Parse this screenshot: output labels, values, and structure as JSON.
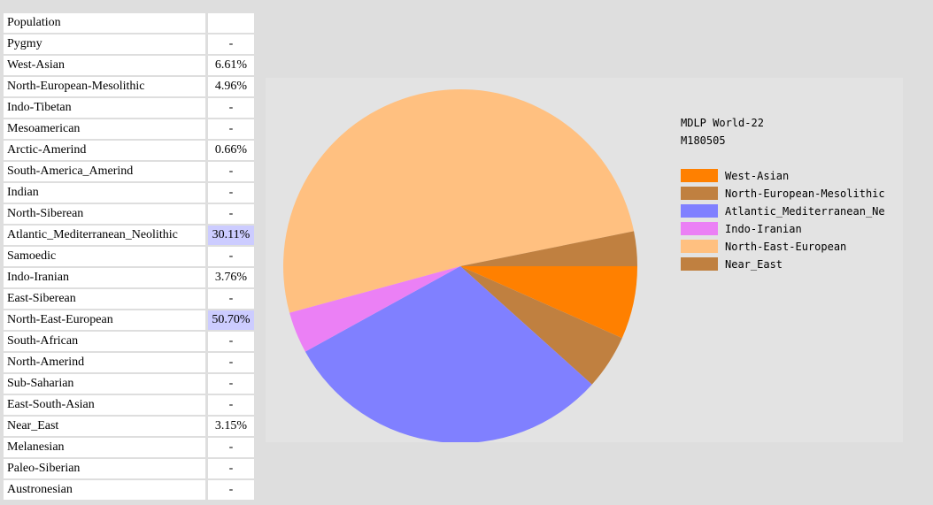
{
  "table": {
    "header": "Population",
    "rows": [
      {
        "name": "Pygmy",
        "value": "-",
        "highlight": false
      },
      {
        "name": "West-Asian",
        "value": "6.61%",
        "highlight": false
      },
      {
        "name": "North-European-Mesolithic",
        "value": "4.96%",
        "highlight": false
      },
      {
        "name": "Indo-Tibetan",
        "value": "-",
        "highlight": false
      },
      {
        "name": "Mesoamerican",
        "value": "-",
        "highlight": false
      },
      {
        "name": "Arctic-Amerind",
        "value": "0.66%",
        "highlight": false
      },
      {
        "name": "South-America_Amerind",
        "value": "-",
        "highlight": false
      },
      {
        "name": "Indian",
        "value": "-",
        "highlight": false
      },
      {
        "name": "North-Siberean",
        "value": "-",
        "highlight": false
      },
      {
        "name": "Atlantic_Mediterranean_Neolithic",
        "value": "30.11%",
        "highlight": true
      },
      {
        "name": "Samoedic",
        "value": "-",
        "highlight": false
      },
      {
        "name": "Indo-Iranian",
        "value": "3.76%",
        "highlight": false
      },
      {
        "name": "East-Siberean",
        "value": "-",
        "highlight": false
      },
      {
        "name": "North-East-European",
        "value": "50.70%",
        "highlight": true
      },
      {
        "name": "South-African",
        "value": "-",
        "highlight": false
      },
      {
        "name": "North-Amerind",
        "value": "-",
        "highlight": false
      },
      {
        "name": "Sub-Saharian",
        "value": "-",
        "highlight": false
      },
      {
        "name": "East-South-Asian",
        "value": "-",
        "highlight": false
      },
      {
        "name": "Near_East",
        "value": "3.15%",
        "highlight": false
      },
      {
        "name": "Melanesian",
        "value": "-",
        "highlight": false
      },
      {
        "name": "Paleo-Siberian",
        "value": "-",
        "highlight": false
      },
      {
        "name": "Austronesian",
        "value": "-",
        "highlight": false
      }
    ]
  },
  "chart_data": {
    "type": "pie",
    "title": "MDLP World-22",
    "subtitle": "M180505",
    "legend_position": "right",
    "slices": [
      {
        "label": "West-Asian",
        "value": 6.61,
        "color": "#ff8000"
      },
      {
        "label": "North-European-Mesolithic",
        "value": 4.96,
        "color": "#c08040"
      },
      {
        "label": "Atlantic_Mediterranean_Ne",
        "value": 30.11,
        "color": "#8080ff"
      },
      {
        "label": "Indo-Iranian",
        "value": 3.76,
        "color": "#eb80f5"
      },
      {
        "label": "North-East-European",
        "value": 50.7,
        "color": "#ffc080"
      },
      {
        "label": "Near_East",
        "value": 3.15,
        "color": "#c08040"
      }
    ]
  }
}
